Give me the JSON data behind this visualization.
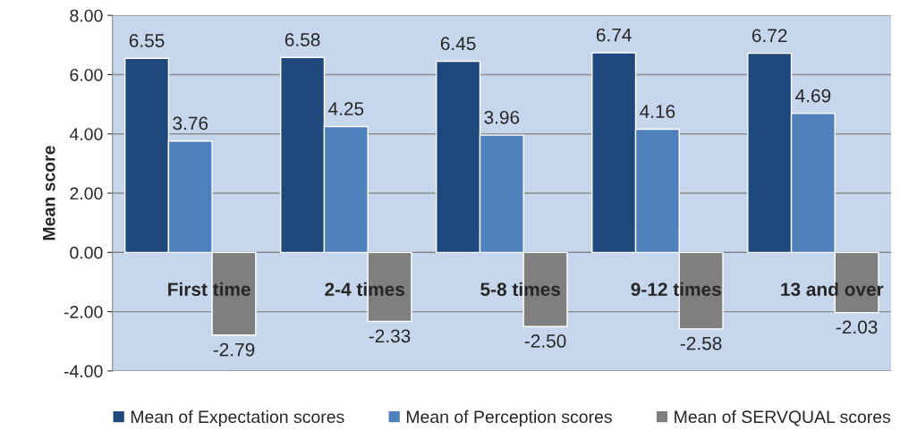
{
  "chart_data": {
    "type": "bar",
    "ylabel": "Mean score",
    "categories": [
      "First time",
      "2-4 times",
      "5-8 times",
      "9-12 times",
      "13 and over"
    ],
    "series": [
      {
        "name": "Mean of Expectation scores",
        "color": "#1f497d",
        "values": [
          6.55,
          6.58,
          6.45,
          6.74,
          6.72
        ]
      },
      {
        "name": "Mean of Perception scores",
        "color": "#4f81bd",
        "values": [
          3.76,
          4.25,
          3.96,
          4.16,
          4.69
        ]
      },
      {
        "name": "Mean of SERVQUAL scores",
        "color": "#7f7f7f",
        "values": [
          -2.79,
          -2.33,
          -2.5,
          -2.58,
          -2.03
        ],
        "value_labels": [
          "-2.79",
          "-2.33",
          "-2.50",
          "-2.58",
          "-2.03"
        ]
      }
    ],
    "ylim": [
      -4,
      8
    ],
    "yticks": [
      {
        "value": -4,
        "label": "-4.00"
      },
      {
        "value": -2,
        "label": "-2.00"
      },
      {
        "value": 0,
        "label": "0.00"
      },
      {
        "value": 2,
        "label": "2.00"
      },
      {
        "value": 4,
        "label": "4.00"
      },
      {
        "value": 6,
        "label": "6.00"
      },
      {
        "value": 8,
        "label": "8.00"
      }
    ],
    "grid": "y",
    "legend": "bottom",
    "data_labels": true
  }
}
